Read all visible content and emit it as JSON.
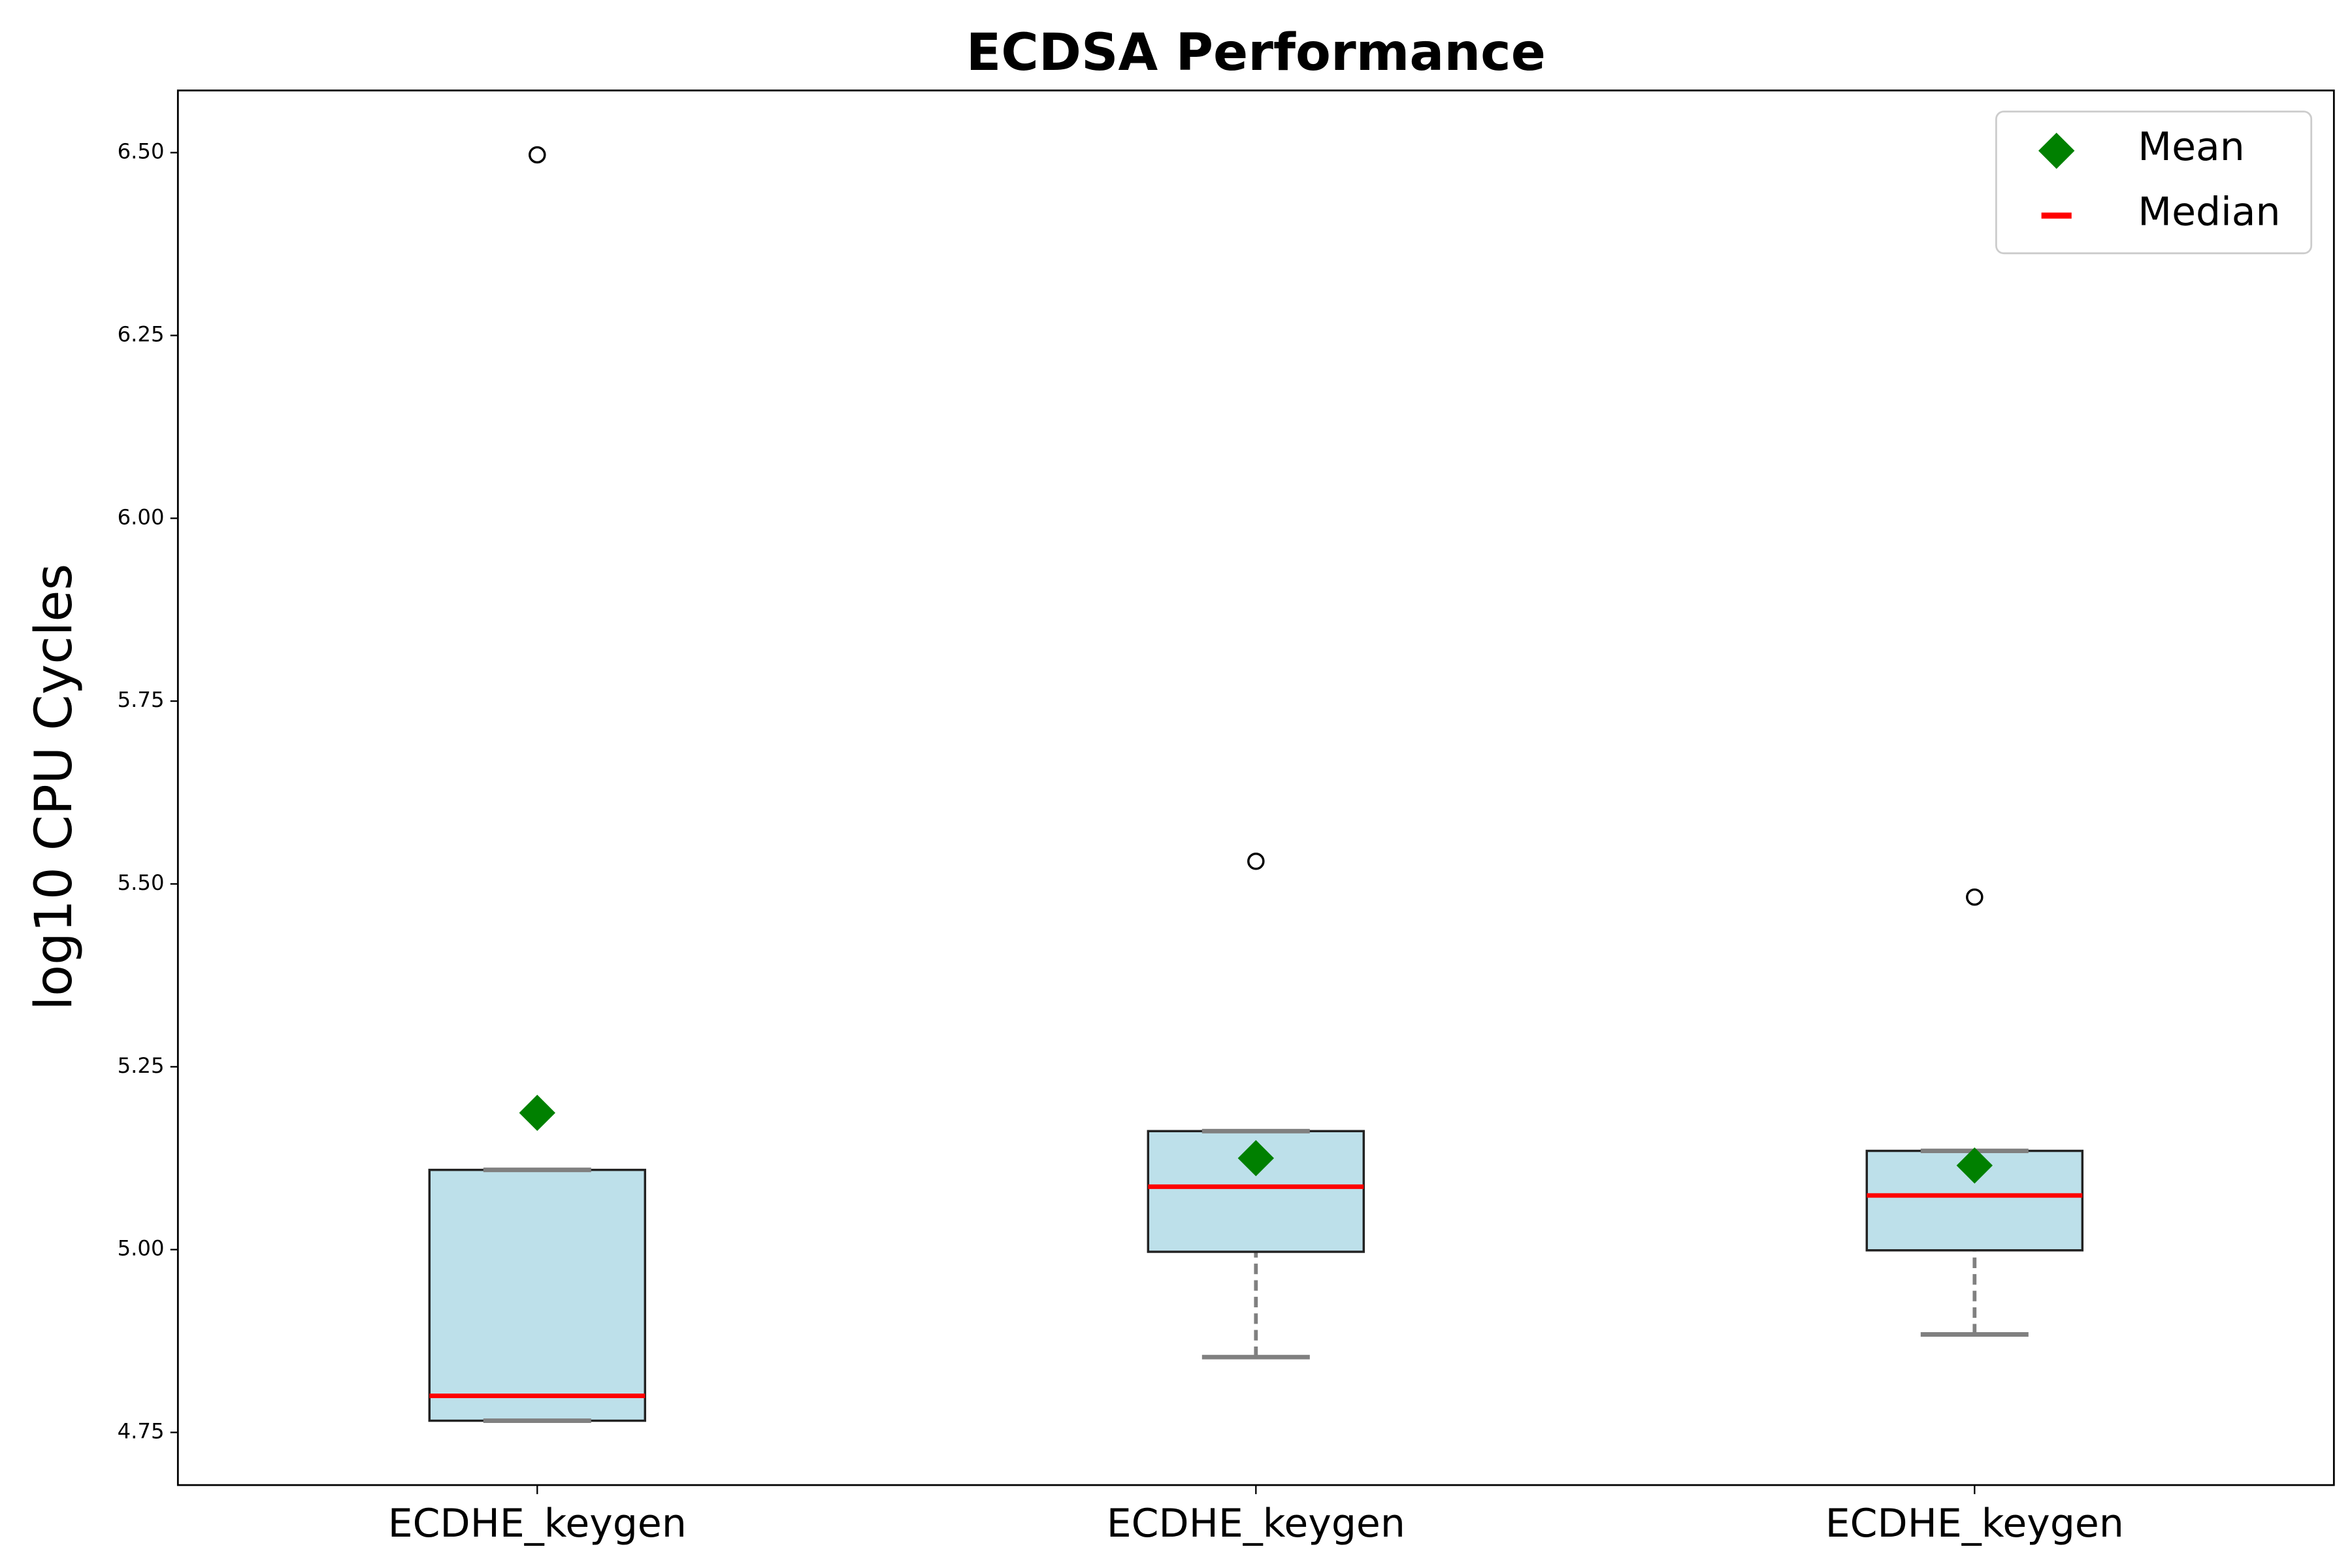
{
  "chart_data": {
    "type": "box",
    "title": "ECDSA Performance",
    "y_label": "log10 CPU Cycles",
    "categories": [
      "ECDHE_keygen",
      "ECDHE_keygen",
      "ECDHE_keygen"
    ],
    "boxes": [
      {
        "whislo": 4.766,
        "q1": 4.766,
        "med": 4.8,
        "q3": 5.109,
        "whishi": 5.109,
        "mean": 5.187,
        "fliers": [
          6.497
        ]
      },
      {
        "whislo": 4.853,
        "q1": 4.997,
        "med": 5.086,
        "q3": 5.162,
        "whishi": 5.162,
        "mean": 5.125,
        "fliers": [
          5.531
        ]
      },
      {
        "whislo": 4.884,
        "q1": 4.999,
        "med": 5.074,
        "q3": 5.135,
        "whishi": 5.135,
        "mean": 5.115,
        "fliers": [
          5.482
        ]
      }
    ],
    "box_color": "#bde0ea",
    "whisker_color": "#808080",
    "legend": [
      {
        "name": "Mean",
        "color": "#008000"
      },
      {
        "name": "Median",
        "color": "#ff0000"
      }
    ],
    "legend_position": "upper right",
    "ylim": [
      4.678,
      6.585
    ],
    "yticks": [
      {
        "value": 4.75,
        "label": "4.75"
      },
      {
        "value": 5.0,
        "label": "5.00"
      },
      {
        "value": 5.25,
        "label": "5.25"
      },
      {
        "value": 5.5,
        "label": "5.50"
      },
      {
        "value": 5.75,
        "label": "5.75"
      },
      {
        "value": 6.0,
        "label": "6.00"
      },
      {
        "value": 6.25,
        "label": "6.25"
      },
      {
        "value": 6.5,
        "label": "6.50"
      }
    ],
    "grid": false
  }
}
